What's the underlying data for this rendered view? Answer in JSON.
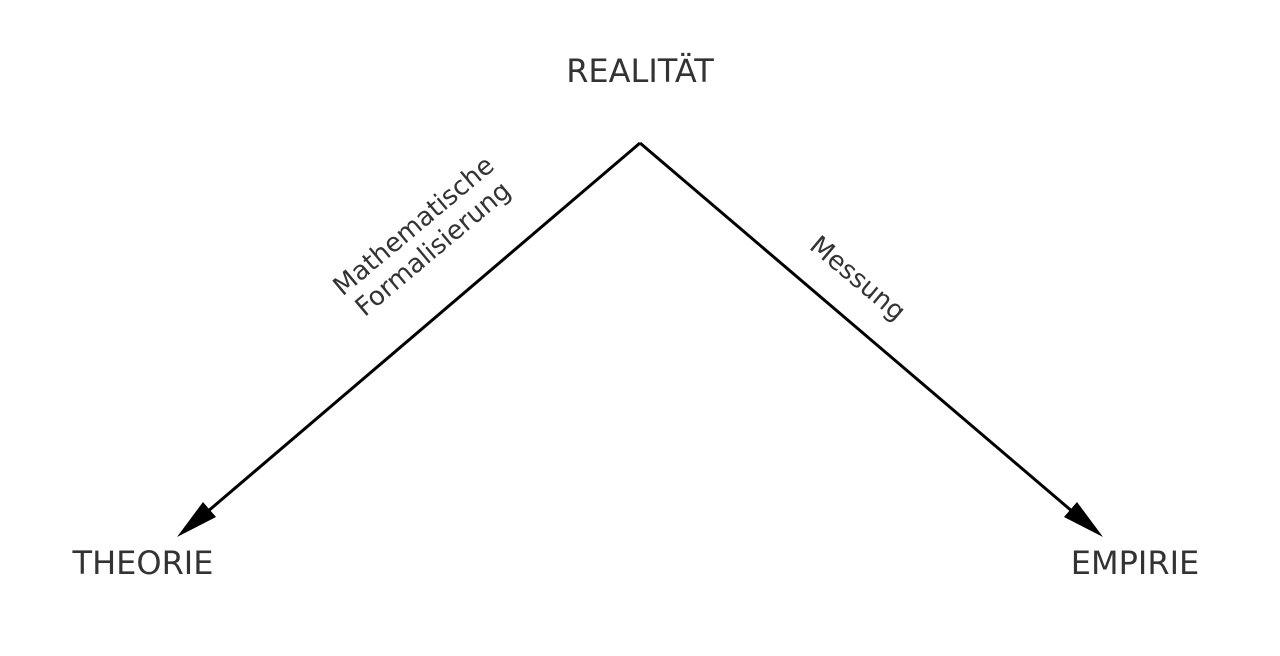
{
  "nodes": {
    "realitaet": "REALITÄT",
    "theorie": "THEORIE",
    "empirie": "EMPIRIE"
  },
  "edges": {
    "to_theorie": {
      "line1": "Mathematische",
      "line2": "Formalisierung"
    },
    "to_empirie": {
      "line1": "Messung"
    }
  },
  "colors": {
    "text": "#333333",
    "lines": "#000000",
    "background": "#ffffff"
  }
}
